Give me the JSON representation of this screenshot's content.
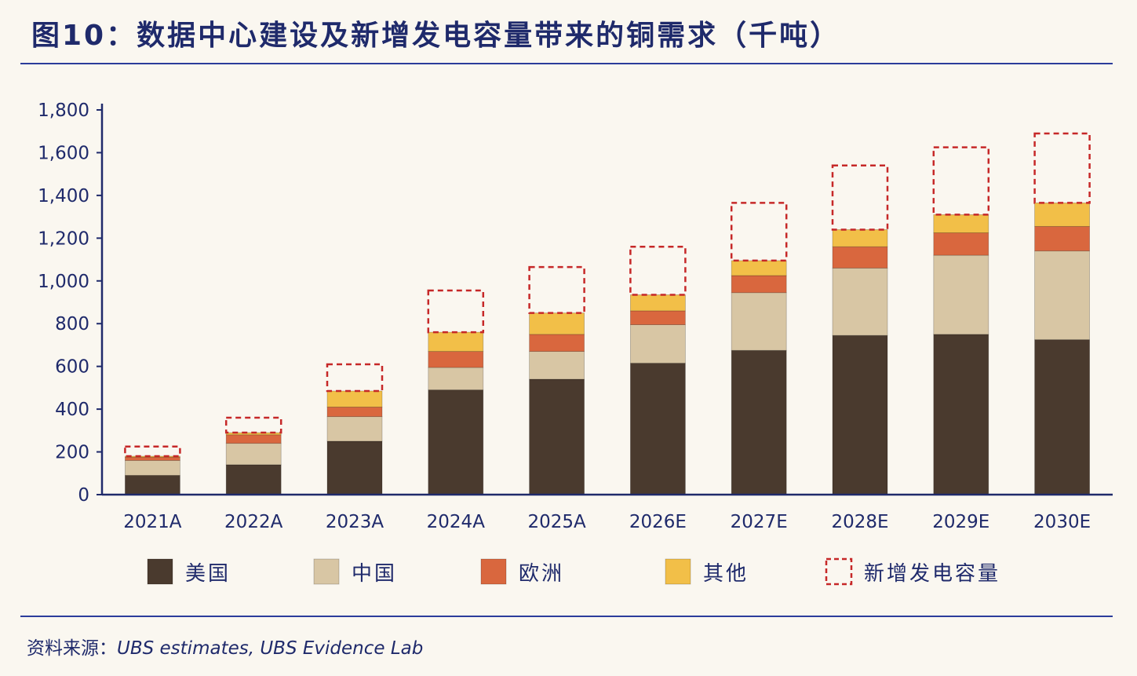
{
  "title": "图10：数据中心建设及新增发电容量带来的铜需求（千吨）",
  "source_label": "资料来源：",
  "source_text": "UBS estimates, UBS Evidence Lab",
  "colors": {
    "us": "#4a3a2e",
    "china": "#d8c6a4",
    "europe": "#d9673e",
    "other": "#f2bf48",
    "new_capacity": "#c62828",
    "axis": "#1f2a6b"
  },
  "chart_data": {
    "type": "bar",
    "stacked": true,
    "categories": [
      "2021A",
      "2022A",
      "2023A",
      "2024A",
      "2025A",
      "2026E",
      "2027E",
      "2028E",
      "2029E",
      "2030E"
    ],
    "series": [
      {
        "name": "美国",
        "color_key": "us",
        "style": "solid",
        "values": [
          90,
          140,
          250,
          490,
          540,
          615,
          675,
          745,
          750,
          725
        ]
      },
      {
        "name": "中国",
        "color_key": "china",
        "style": "solid",
        "values": [
          70,
          100,
          115,
          105,
          130,
          180,
          270,
          315,
          370,
          415
        ]
      },
      {
        "name": "欧洲",
        "color_key": "europe",
        "style": "solid",
        "values": [
          15,
          40,
          45,
          75,
          80,
          65,
          80,
          100,
          105,
          115
        ]
      },
      {
        "name": "其他",
        "color_key": "other",
        "style": "solid",
        "values": [
          5,
          10,
          75,
          90,
          100,
          75,
          70,
          80,
          85,
          110
        ]
      },
      {
        "name": "新增发电容量",
        "color_key": "new_capacity",
        "style": "dashed",
        "values": [
          45,
          70,
          125,
          195,
          215,
          225,
          270,
          300,
          315,
          325
        ]
      }
    ],
    "yticks": [
      "0",
      "200",
      "400",
      "600",
      "800",
      "1,000",
      "1,200",
      "1,400",
      "1,600",
      "1,800"
    ],
    "ylim": [
      0,
      1800
    ],
    "legend_position": "bottom"
  }
}
